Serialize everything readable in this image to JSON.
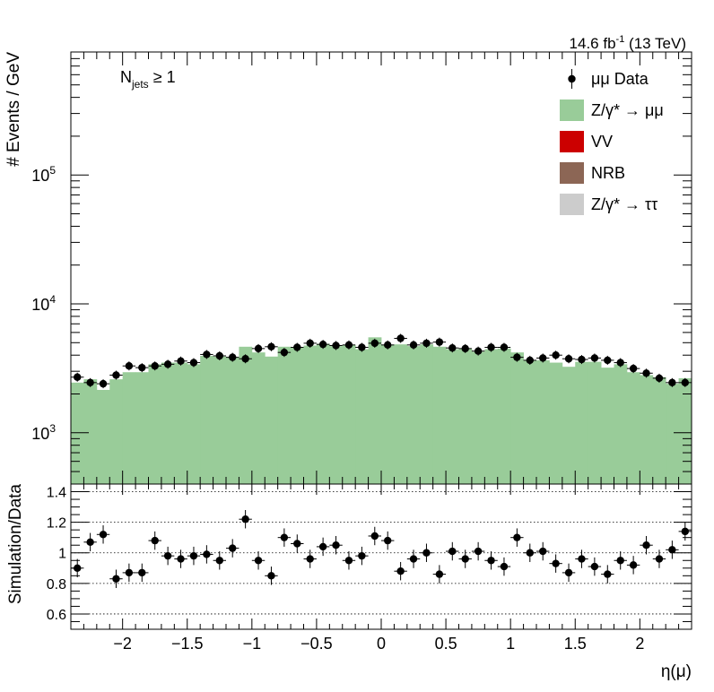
{
  "lumi_label": "14.6 fb",
  "lumi_sup": "-1",
  "lumi_tail": " (13 TeV)",
  "selection": {
    "base": "N",
    "sub": "jets",
    "rest": " ≥ 1"
  },
  "legend": [
    {
      "key": "data",
      "label": "μμ Data",
      "color": "#000000"
    },
    {
      "key": "zmumu",
      "label": "Z/γ* → μμ",
      "color": "#99cc99"
    },
    {
      "key": "vv",
      "label": "VV",
      "color": "#cc0000"
    },
    {
      "key": "nrb",
      "label": "NRB",
      "color": "#8c6655"
    },
    {
      "key": "ztautau",
      "label": "Z/γ* → ττ",
      "color": "#cccccc"
    }
  ],
  "chart_data": [
    {
      "type": "bar",
      "name": "main",
      "ylabel": "# Events / GeV",
      "yscale": "log",
      "ylim": [
        400,
        900000
      ],
      "xlim": [
        -2.4,
        2.4
      ],
      "y_ticks": [
        {
          "value": 1000,
          "base": "10",
          "exp": "3"
        },
        {
          "value": 10000,
          "base": "10",
          "exp": "4"
        },
        {
          "value": 100000,
          "base": "10",
          "exp": "5"
        }
      ],
      "bin_width": 0.1,
      "bin_centers": [
        -2.35,
        -2.25,
        -2.15,
        -2.05,
        -1.95,
        -1.85,
        -1.75,
        -1.65,
        -1.55,
        -1.45,
        -1.35,
        -1.25,
        -1.15,
        -1.05,
        -0.95,
        -0.85,
        -0.75,
        -0.65,
        -0.55,
        -0.45,
        -0.35,
        -0.25,
        -0.15,
        -0.05,
        0.05,
        0.15,
        0.25,
        0.35,
        0.45,
        0.55,
        0.65,
        0.75,
        0.85,
        0.95,
        1.05,
        1.15,
        1.25,
        1.35,
        1.45,
        1.55,
        1.65,
        1.75,
        1.85,
        1.95,
        2.05,
        2.15,
        2.25,
        2.35
      ],
      "series": [
        {
          "name": "Z/γ* → μμ",
          "values": [
            2450,
            2600,
            2150,
            2600,
            2950,
            2950,
            3400,
            3500,
            3500,
            3400,
            3950,
            3900,
            3850,
            4650,
            4200,
            3900,
            4650,
            4600,
            4750,
            4900,
            4700,
            4800,
            4450,
            5500,
            4800,
            4850,
            4700,
            4850,
            4650,
            4450,
            4500,
            4250,
            4450,
            4500,
            4200,
            3650,
            3650,
            3500,
            3250,
            3550,
            3550,
            3200,
            3400,
            2950,
            2800,
            2700,
            2400,
            2650
          ]
        },
        {
          "name": "μμ Data",
          "values": [
            2700,
            2450,
            2400,
            2800,
            3300,
            3200,
            3300,
            3400,
            3600,
            3500,
            4050,
            3950,
            3850,
            3750,
            4500,
            4650,
            4200,
            4600,
            4950,
            4850,
            4750,
            4800,
            4600,
            4950,
            4800,
            5400,
            4800,
            4950,
            5050,
            4550,
            4500,
            4300,
            4600,
            4600,
            3850,
            3650,
            3800,
            4000,
            3750,
            3700,
            3800,
            3650,
            3500,
            3150,
            2900,
            2650,
            2450,
            2450
          ]
        }
      ]
    },
    {
      "type": "scatter",
      "name": "ratio",
      "xlabel": "η(μ)",
      "ylabel": "Simulation/Data",
      "xlim": [
        -2.4,
        2.4
      ],
      "ylim": [
        0.5,
        1.45
      ],
      "grid": "horizontal dotted at 0.6, 0.8, 1, 1.2, 1.4",
      "x_ticks": [
        -2,
        -1.5,
        -1,
        -0.5,
        0,
        0.5,
        1,
        1.5,
        2
      ],
      "x_tick_labels": [
        "−2",
        "−1.5",
        "−1",
        "−0.5",
        "0",
        "0.5",
        "1",
        "1.5",
        "2"
      ],
      "y_ticks": [
        0.6,
        0.8,
        1,
        1.2,
        1.4
      ],
      "y_tick_labels": [
        "0.6",
        "0.8",
        "1",
        "1.2",
        "1.4"
      ],
      "x": [
        -2.35,
        -2.25,
        -2.15,
        -2.05,
        -1.95,
        -1.85,
        -1.75,
        -1.65,
        -1.55,
        -1.45,
        -1.35,
        -1.25,
        -1.15,
        -1.05,
        -0.95,
        -0.85,
        -0.75,
        -0.65,
        -0.55,
        -0.45,
        -0.35,
        -0.25,
        -0.15,
        -0.05,
        0.05,
        0.15,
        0.25,
        0.35,
        0.45,
        0.55,
        0.65,
        0.75,
        0.85,
        0.95,
        1.05,
        1.15,
        1.25,
        1.35,
        1.45,
        1.55,
        1.65,
        1.75,
        1.85,
        1.95,
        2.05,
        2.15,
        2.25,
        2.35
      ],
      "y": [
        0.9,
        1.07,
        1.12,
        0.83,
        0.87,
        0.87,
        1.08,
        0.98,
        0.96,
        0.98,
        0.99,
        0.95,
        1.03,
        1.22,
        0.95,
        0.85,
        1.1,
        1.06,
        0.96,
        1.04,
        1.05,
        0.95,
        0.98,
        1.11,
        1.08,
        0.88,
        0.96,
        1.0,
        0.86,
        1.01,
        0.96,
        1.01,
        0.95,
        0.91,
        1.1,
        1.0,
        1.01,
        0.93,
        0.87,
        0.96,
        0.91,
        0.86,
        0.95,
        0.92,
        1.05,
        0.96,
        1.02,
        1.14
      ],
      "yerr": 0.06
    }
  ]
}
